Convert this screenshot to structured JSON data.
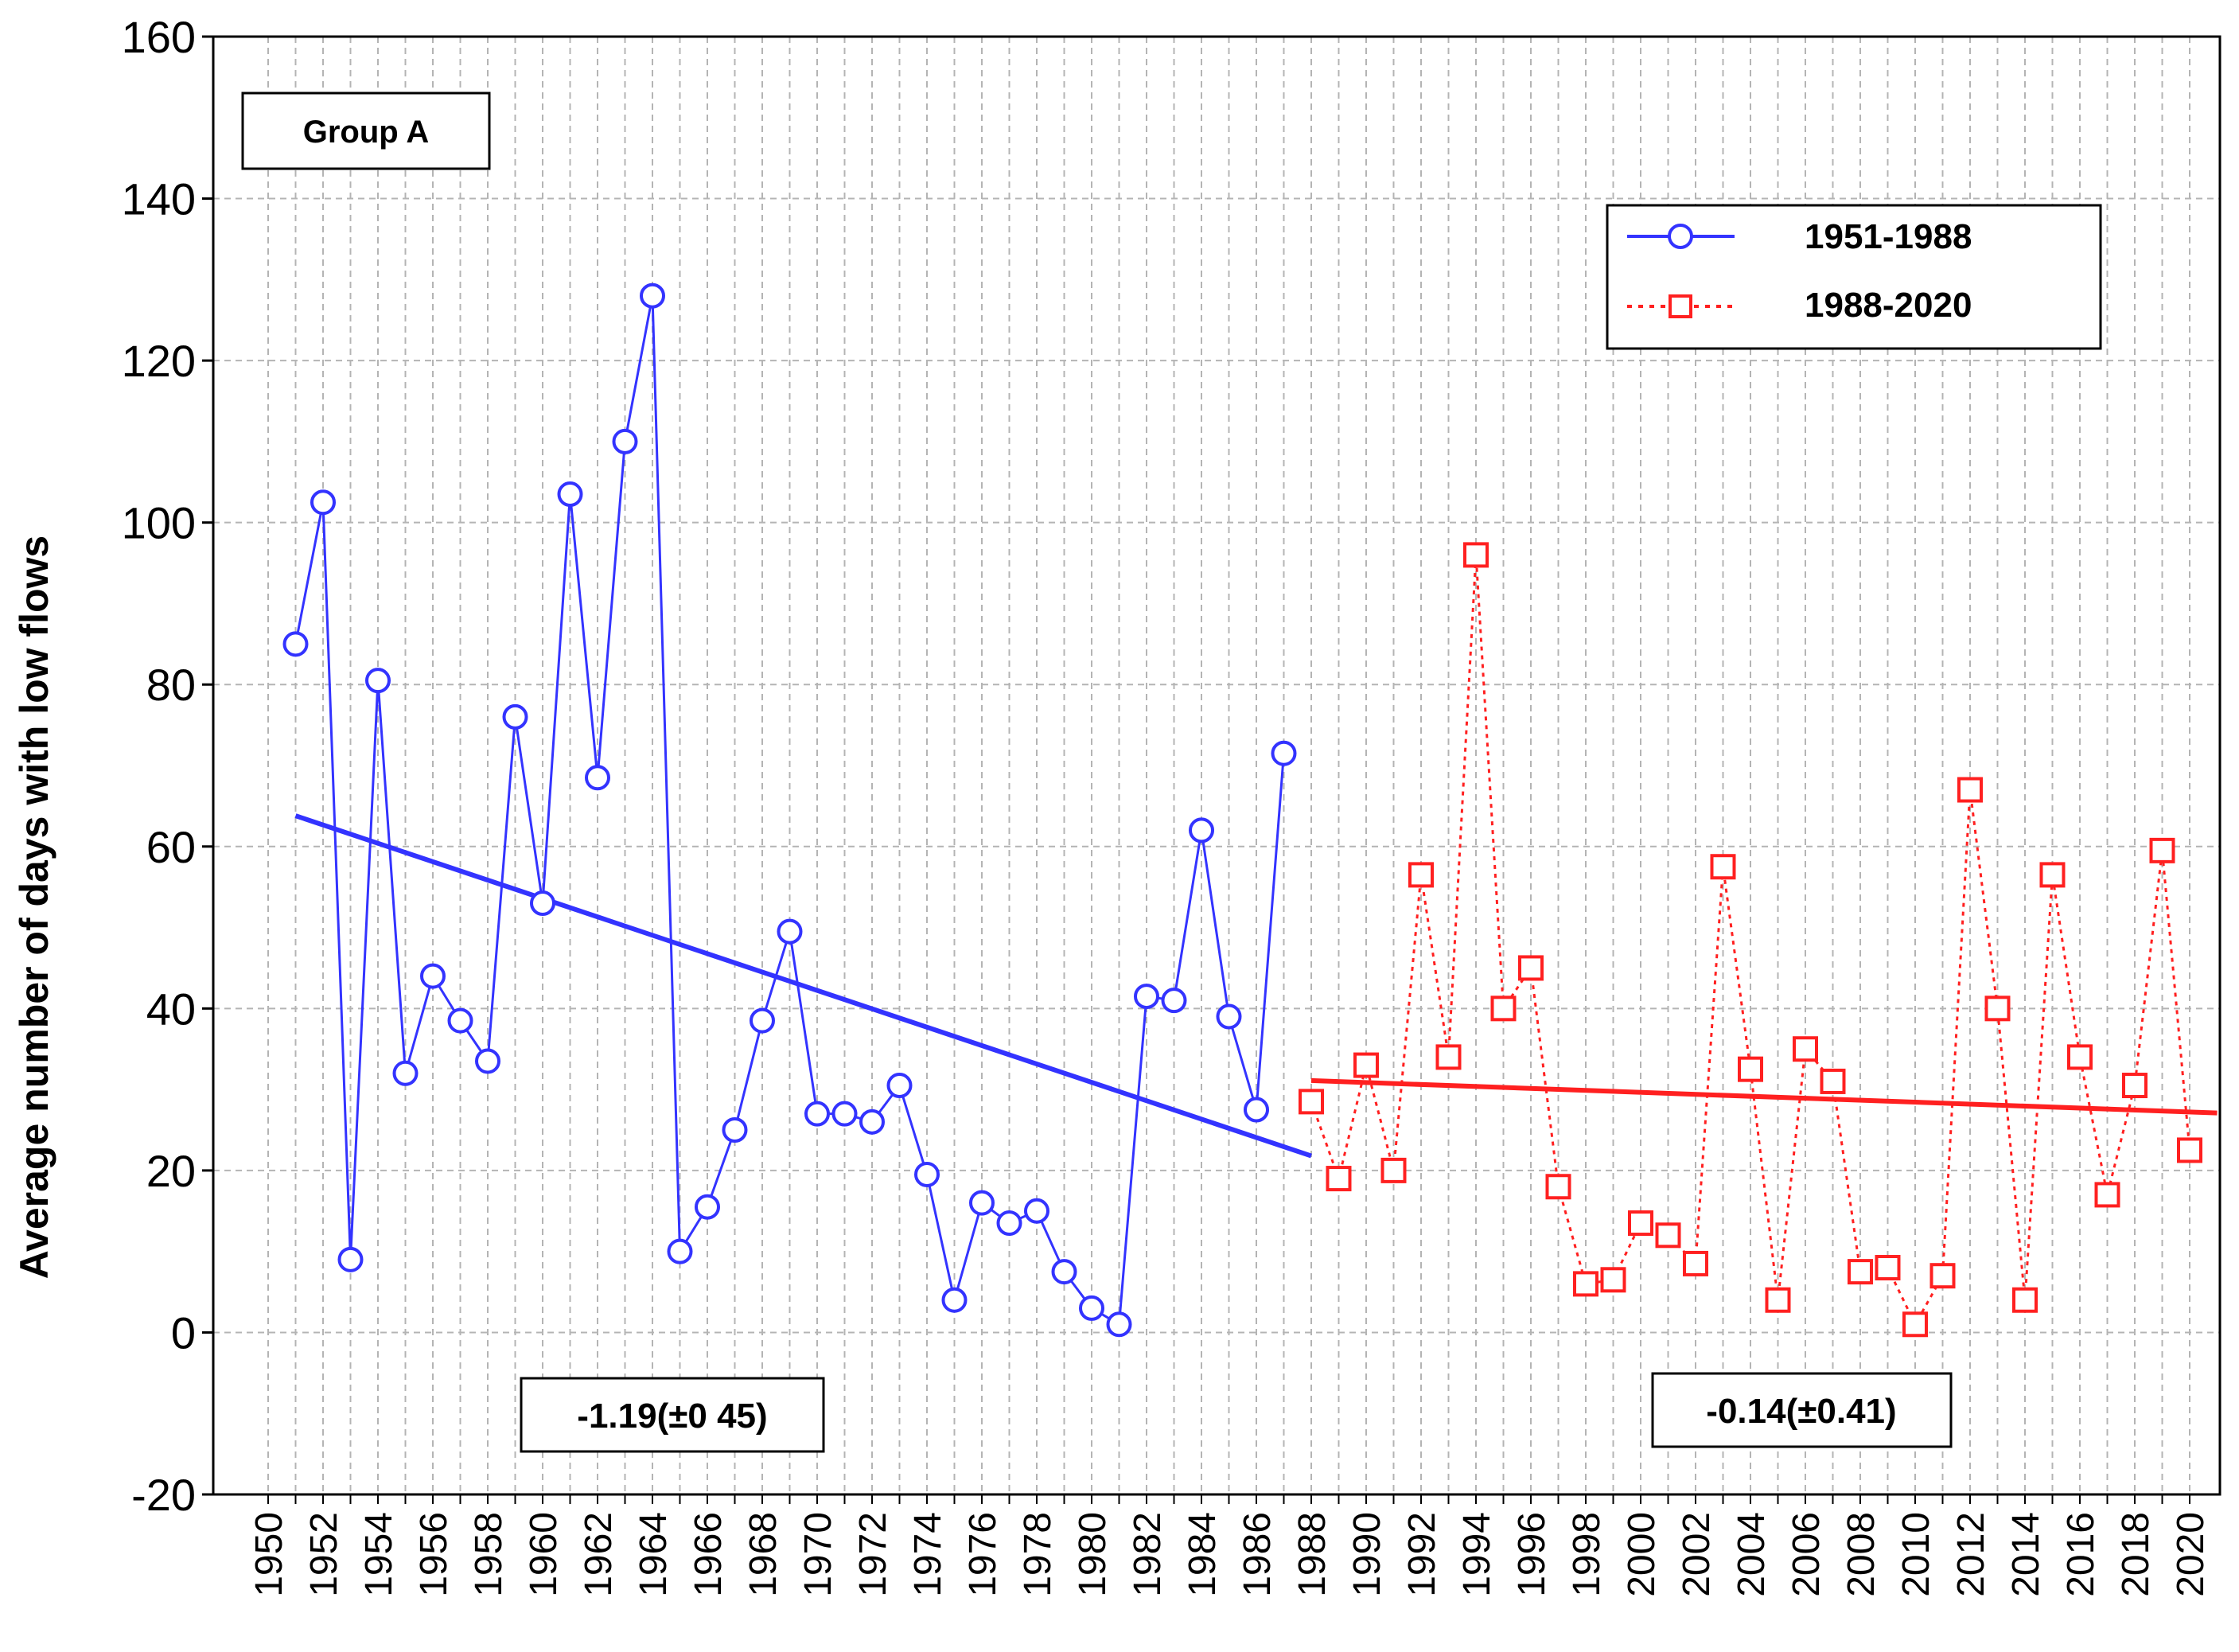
{
  "chart_data": {
    "type": "line",
    "title": "",
    "xlabel": "",
    "ylabel": "Average number of days with low flows",
    "xlim": [
      1949.5,
      2021
    ],
    "ylim": [
      -20,
      160
    ],
    "yticks": [
      -20,
      0,
      20,
      40,
      60,
      80,
      100,
      120,
      140,
      160
    ],
    "xtick_labels": [
      "1950",
      "1952",
      "1954",
      "1956",
      "1958",
      "1960",
      "1962",
      "1964",
      "1966",
      "1968",
      "1970",
      "1972",
      "1974",
      "1976",
      "1978",
      "1980",
      "1982",
      "1984",
      "1986",
      "1988",
      "1990",
      "1992",
      "1994",
      "1996",
      "1998",
      "2000",
      "2002",
      "2004",
      "2006",
      "2008",
      "2010",
      "2012",
      "2014",
      "2016",
      "2018",
      "2020"
    ],
    "grid": true,
    "group_label": "Group A",
    "series": [
      {
        "name": "1951-1988",
        "color": "#3333ff",
        "marker": "circle",
        "line_style": "solid",
        "x": [
          1951,
          1952,
          1953,
          1954,
          1955,
          1956,
          1957,
          1958,
          1959,
          1960,
          1961,
          1962,
          1963,
          1964,
          1965,
          1966,
          1967,
          1968,
          1969,
          1970,
          1971,
          1972,
          1973,
          1974,
          1975,
          1976,
          1977,
          1978,
          1979,
          1980,
          1981,
          1982,
          1983,
          1984,
          1985,
          1986,
          1987
        ],
        "values": [
          85,
          102.5,
          9,
          80.5,
          32,
          44,
          38.5,
          33.5,
          76,
          53,
          103.5,
          68.5,
          110,
          128,
          10,
          15.5,
          25,
          38.5,
          49.5,
          27,
          27,
          26,
          30.5,
          19.5,
          4,
          16,
          13.5,
          15,
          7.5,
          3,
          1,
          41.5,
          41,
          62,
          39,
          27.5,
          71.5
        ],
        "trend": {
          "x": [
            1951,
            1988
          ],
          "values": [
            63.8,
            21.8
          ],
          "label": "-1.19(±0 45)"
        }
      },
      {
        "name": "1988-2020",
        "color": "#ff2020",
        "marker": "square",
        "line_style": "dotted",
        "x": [
          1988,
          1989,
          1990,
          1991,
          1992,
          1993,
          1994,
          1995,
          1996,
          1997,
          1998,
          1999,
          2000,
          2001,
          2002,
          2003,
          2004,
          2005,
          2006,
          2007,
          2008,
          2009,
          2010,
          2011,
          2012,
          2013,
          2014,
          2015,
          2016,
          2017,
          2018,
          2019,
          2020
        ],
        "values": [
          28.5,
          19,
          33,
          20,
          56.5,
          34,
          96,
          40,
          45,
          18,
          6,
          6.5,
          13.5,
          12,
          8.5,
          57.5,
          32.5,
          4,
          35,
          31,
          7.5,
          8,
          1,
          7,
          67,
          40,
          4,
          56.5,
          34,
          17,
          30.5,
          59.5,
          22.5
        ],
        "trend": {
          "x": [
            1988,
            2021
          ],
          "values": [
            31.1,
            27.1
          ],
          "label": "-0.14(±0.41)"
        }
      }
    ]
  }
}
